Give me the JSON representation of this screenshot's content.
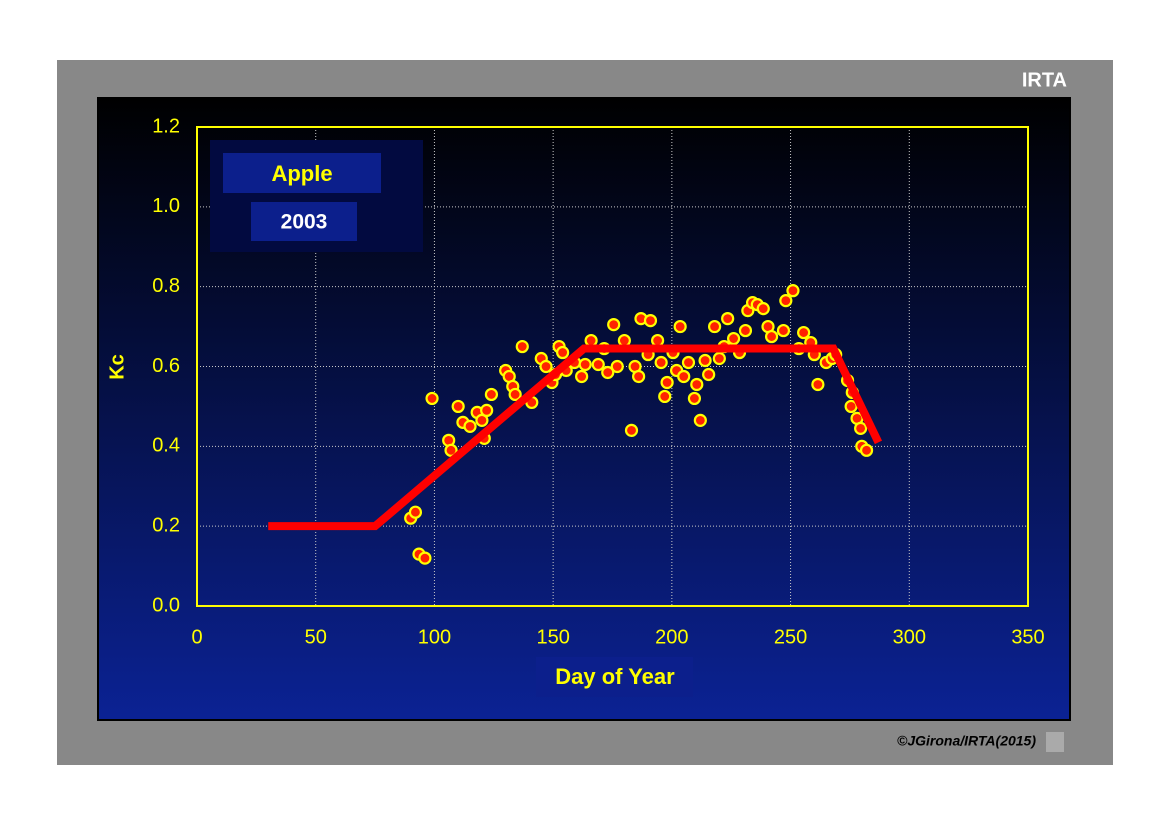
{
  "chart_data": {
    "type": "scatter",
    "title": "Apple",
    "subtitle": "2003",
    "brand": "IRTA",
    "credit": "©JGirona/IRTA(2015)",
    "xlabel": "Day of Year",
    "ylabel": "Kc",
    "xlim": [
      0,
      350
    ],
    "ylim": [
      0,
      1.2
    ],
    "xticks": [
      0,
      50,
      100,
      150,
      200,
      250,
      300,
      350
    ],
    "yticks": [
      {
        "value": 0,
        "label": "0.0"
      },
      0.2,
      0.4,
      0.6,
      0.8,
      {
        "value": 1,
        "label": "1.0"
      },
      1.2
    ],
    "grid": true,
    "series": [
      {
        "type": "scatter",
        "color": "#ff2200",
        "edge_color": "#ffff00",
        "x": [
          90,
          92,
          93.5,
          96,
          99,
          106,
          107,
          110,
          112,
          115,
          118,
          120,
          121,
          122,
          124,
          130,
          131.5,
          133,
          134,
          137,
          141,
          145,
          147,
          149.5,
          151,
          152.5,
          154,
          155.5,
          159,
          162,
          163.5,
          166,
          169,
          171.5,
          173,
          175.5,
          177,
          180,
          183,
          184.5,
          186,
          187,
          190,
          191,
          194,
          195.5,
          197,
          198,
          200.5,
          202,
          203.5,
          205,
          207,
          209.5,
          210.5,
          212,
          214,
          215.5,
          218,
          220,
          222,
          223.5,
          226,
          228.5,
          231,
          232,
          234,
          236,
          238.5,
          240.5,
          242,
          247,
          248,
          251,
          253.5,
          255.5,
          258.5,
          260,
          261.5,
          265,
          267.5,
          269,
          274,
          276,
          275.5,
          278,
          279.5,
          280,
          282
        ],
        "values": [
          0.22,
          0.235,
          0.13,
          0.12,
          0.52,
          0.415,
          0.39,
          0.5,
          0.46,
          0.45,
          0.485,
          0.465,
          0.42,
          0.49,
          0.53,
          0.59,
          0.575,
          0.55,
          0.53,
          0.65,
          0.51,
          0.62,
          0.6,
          0.56,
          0.58,
          0.65,
          0.635,
          0.59,
          0.61,
          0.575,
          0.605,
          0.665,
          0.605,
          0.645,
          0.585,
          0.705,
          0.6,
          0.665,
          0.44,
          0.6,
          0.575,
          0.72,
          0.63,
          0.715,
          0.665,
          0.61,
          0.525,
          0.56,
          0.635,
          0.59,
          0.7,
          0.575,
          0.61,
          0.52,
          0.555,
          0.465,
          0.615,
          0.58,
          0.7,
          0.62,
          0.65,
          0.72,
          0.67,
          0.635,
          0.69,
          0.74,
          0.76,
          0.755,
          0.745,
          0.7,
          0.675,
          0.69,
          0.765,
          0.79,
          0.645,
          0.685,
          0.66,
          0.63,
          0.555,
          0.61,
          0.62,
          0.63,
          0.565,
          0.535,
          0.5,
          0.47,
          0.445,
          0.4,
          0.39
        ]
      },
      {
        "type": "line",
        "color": "#ff0000",
        "x": [
          30,
          75,
          163,
          268,
          287
        ],
        "values": [
          0.2,
          0.2,
          0.645,
          0.645,
          0.41
        ]
      }
    ]
  }
}
